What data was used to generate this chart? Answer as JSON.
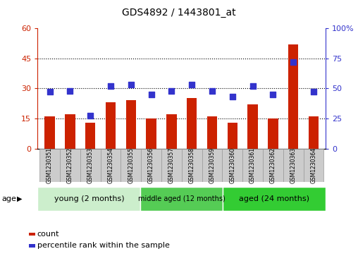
{
  "title": "GDS4892 / 1443801_at",
  "samples": [
    "GSM1230351",
    "GSM1230352",
    "GSM1230353",
    "GSM1230354",
    "GSM1230355",
    "GSM1230356",
    "GSM1230357",
    "GSM1230358",
    "GSM1230359",
    "GSM1230360",
    "GSM1230361",
    "GSM1230362",
    "GSM1230363",
    "GSM1230364"
  ],
  "counts": [
    16,
    17,
    13,
    23,
    24,
    15,
    17,
    25,
    16,
    13,
    22,
    15,
    52,
    16
  ],
  "percentiles": [
    47,
    48,
    27,
    52,
    53,
    45,
    48,
    53,
    48,
    43,
    52,
    45,
    72,
    47
  ],
  "bar_color": "#cc2200",
  "dot_color": "#3333cc",
  "ylim_left": [
    0,
    60
  ],
  "ylim_right": [
    0,
    100
  ],
  "yticks_left": [
    0,
    15,
    30,
    45,
    60
  ],
  "ytick_labels_left": [
    "0",
    "15",
    "30",
    "45",
    "60"
  ],
  "yticks_right": [
    0,
    25,
    50,
    75,
    100
  ],
  "ytick_labels_right": [
    "0",
    "25",
    "50",
    "75",
    "100%"
  ],
  "groups": [
    {
      "label": "young (2 months)",
      "start": 0,
      "end": 5,
      "color": "#cceecc"
    },
    {
      "label": "middle aged (12 months)",
      "start": 5,
      "end": 9,
      "color": "#55cc55"
    },
    {
      "label": "aged (24 months)",
      "start": 9,
      "end": 14,
      "color": "#33cc33"
    }
  ],
  "age_label": "age",
  "legend_count_label": "count",
  "legend_pct_label": "percentile rank within the sample",
  "tick_label_color_left": "#cc2200",
  "tick_label_color_right": "#3333cc",
  "bar_width": 0.5,
  "dot_size": 30,
  "xtick_bg_color": "#cccccc",
  "xtick_border_color": "#999999"
}
